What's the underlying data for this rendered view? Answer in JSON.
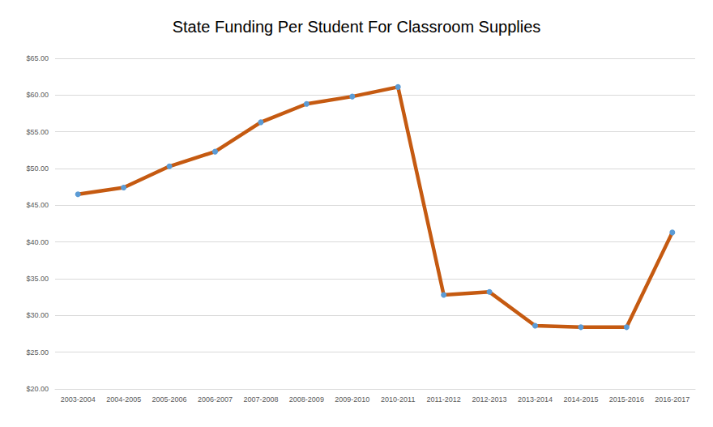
{
  "chart_data": {
    "type": "line",
    "title": "State Funding Per Student For Classroom Supplies",
    "categories": [
      "2003-2004",
      "2004-2005",
      "2005-2006",
      "2006-2007",
      "2007-2008",
      "2008-2009",
      "2009-2010",
      "2010-2011",
      "2011-2012",
      "2012-2013",
      "2013-2014",
      "2014-2015",
      "2015-2016",
      "2016-2017"
    ],
    "values": [
      46.5,
      47.4,
      50.3,
      52.3,
      56.3,
      58.8,
      59.8,
      61.1,
      32.8,
      33.2,
      28.6,
      28.4,
      28.4,
      41.3
    ],
    "color": "#c55a11",
    "marker": "circle",
    "ylim": [
      20,
      65
    ],
    "yticks": [
      {
        "value": 20,
        "label": "$20.00"
      },
      {
        "value": 25,
        "label": "$25.00"
      },
      {
        "value": 30,
        "label": "$30.00"
      },
      {
        "value": 35,
        "label": "$35.00"
      },
      {
        "value": 40,
        "label": "$40.00"
      },
      {
        "value": 45,
        "label": "$45.00"
      },
      {
        "value": 50,
        "label": "$50.00"
      },
      {
        "value": 55,
        "label": "$55.00"
      },
      {
        "value": 60,
        "label": "$60.00"
      },
      {
        "value": 65,
        "label": "$65.00"
      }
    ],
    "grid": true
  }
}
